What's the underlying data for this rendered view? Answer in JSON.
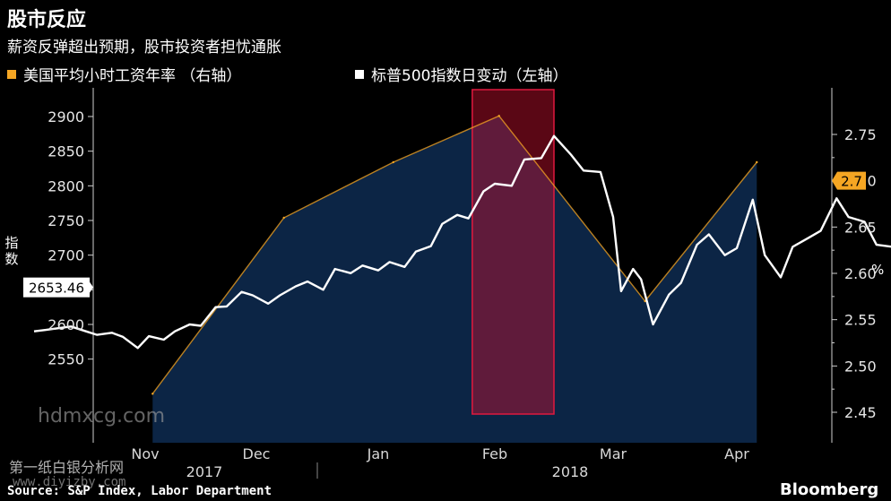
{
  "title": "股市反应",
  "subtitle": "薪资反弹超出预期，股市投资者担忧通胀",
  "legend": {
    "wages": {
      "label": "美国平均小时工资年率 （右轴）",
      "color": "#f5a623"
    },
    "sp500": {
      "label": "标普500指数日变动（左轴）",
      "color": "#ffffff"
    }
  },
  "axes": {
    "left_label": "指数",
    "right_label": "%"
  },
  "source": "Source: S&P Index, Labor Department",
  "brand": "Bloomberg",
  "watermarks": [
    "hdmxcg.com",
    "第一纸白银分析网",
    "www.diyizby.com"
  ],
  "chart_data": {
    "type": "line",
    "x_ticks": [
      {
        "label": "Nov",
        "date": "2017-11-01"
      },
      {
        "label": "Dec",
        "date": "2017-12-01"
      },
      {
        "label": "Jan",
        "date": "2018-01-01"
      },
      {
        "label": "Feb",
        "date": "2018-02-01"
      },
      {
        "label": "Mar",
        "date": "2018-03-01"
      },
      {
        "label": "Apr",
        "date": "2018-04-01"
      }
    ],
    "x_years": [
      "2017",
      "2018"
    ],
    "left_axis": {
      "ticks": [
        2550,
        2600,
        2650,
        2700,
        2750,
        2800,
        2850,
        2900
      ],
      "range": [
        2535,
        2915
      ]
    },
    "right_axis": {
      "ticks": [
        2.45,
        2.5,
        2.55,
        2.6,
        2.65,
        2.7,
        2.75
      ],
      "range": [
        2.44,
        2.77
      ]
    },
    "highlight": {
      "from": "2018-01-26",
      "to": "2018-02-15",
      "color": "#c8102e"
    },
    "current_left": {
      "value": 2653.46,
      "label": "2653.46"
    },
    "current_right": {
      "value": 2.7,
      "label": "2.7"
    },
    "series": [
      {
        "axis": "right",
        "color": "#f5a623",
        "fill": "#0c2545",
        "points": [
          {
            "date": "2017-11-03",
            "value": 2.47
          },
          {
            "date": "2017-12-08",
            "value": 2.66
          },
          {
            "date": "2018-01-05",
            "value": 2.72
          },
          {
            "date": "2018-02-02",
            "value": 2.77
          },
          {
            "date": "2018-03-09",
            "value": 2.57
          },
          {
            "date": "2018-04-06",
            "value": 2.72
          }
        ]
      },
      {
        "axis": "left",
        "color": "#ffffff",
        "points": [
          [
            "2017-10-02",
            2590
          ],
          [
            "2017-10-05",
            2592
          ],
          [
            "2017-10-09",
            2595
          ],
          [
            "2017-10-12",
            2597
          ],
          [
            "2017-10-16",
            2590
          ],
          [
            "2017-10-19",
            2585
          ],
          [
            "2017-10-23",
            2588
          ],
          [
            "2017-10-26",
            2582
          ],
          [
            "2017-10-30",
            2566
          ],
          [
            "2017-11-02",
            2583
          ],
          [
            "2017-11-06",
            2578
          ],
          [
            "2017-11-09",
            2590
          ],
          [
            "2017-11-13",
            2600
          ],
          [
            "2017-11-16",
            2598
          ],
          [
            "2017-11-20",
            2625
          ],
          [
            "2017-11-23",
            2626
          ],
          [
            "2017-11-27",
            2647
          ],
          [
            "2017-11-30",
            2642
          ],
          [
            "2017-12-04",
            2630
          ],
          [
            "2017-12-07",
            2642
          ],
          [
            "2017-12-11",
            2655
          ],
          [
            "2017-12-14",
            2662
          ],
          [
            "2017-12-18",
            2650
          ],
          [
            "2017-12-21",
            2680
          ],
          [
            "2017-12-25",
            2674
          ],
          [
            "2017-12-28",
            2685
          ],
          [
            "2018-01-01",
            2678
          ],
          [
            "2018-01-04",
            2690
          ],
          [
            "2018-01-08",
            2683
          ],
          [
            "2018-01-11",
            2705
          ],
          [
            "2018-01-15",
            2713
          ],
          [
            "2018-01-18",
            2745
          ],
          [
            "2018-01-22",
            2758
          ],
          [
            "2018-01-25",
            2753
          ],
          [
            "2018-01-29",
            2792
          ],
          [
            "2018-02-01",
            2803
          ],
          [
            "2018-02-05",
            2800
          ],
          [
            "2018-02-08",
            2838
          ],
          [
            "2018-02-12",
            2840
          ],
          [
            "2018-02-15",
            2872
          ],
          [
            "2018-02-19",
            2845
          ],
          [
            "2018-02-22",
            2822
          ],
          [
            "2018-02-26",
            2820
          ],
          [
            "2018-03-01",
            2755
          ],
          [
            "2018-03-03",
            2648
          ],
          [
            "2018-03-06",
            2680
          ],
          [
            "2018-03-08",
            2665
          ],
          [
            "2018-03-11",
            2600
          ],
          [
            "2018-03-15",
            2643
          ],
          [
            "2018-03-18",
            2660
          ],
          [
            "2018-03-22",
            2715
          ],
          [
            "2018-03-25",
            2730
          ],
          [
            "2018-03-29",
            2700
          ],
          [
            "2018-04-01",
            2710
          ],
          [
            "2018-04-05",
            2780
          ],
          [
            "2018-04-08",
            2700
          ],
          [
            "2018-04-12",
            2668
          ],
          [
            "2018-04-15",
            2712
          ],
          [
            "2018-04-19",
            2725
          ],
          [
            "2018-04-22",
            2735
          ],
          [
            "2018-04-26",
            2782
          ],
          [
            "2018-04-29",
            2755
          ],
          [
            "2018-05-03",
            2748
          ],
          [
            "2018-05-06",
            2715
          ],
          [
            "2018-05-10",
            2712
          ],
          [
            "2018-05-13",
            2640
          ],
          [
            "2018-05-15",
            2600
          ],
          [
            "2018-05-17",
            2657
          ],
          [
            "2018-05-19",
            2608
          ],
          [
            "2018-05-22",
            2640
          ],
          [
            "2018-05-25",
            2596
          ],
          [
            "2018-05-29",
            2640
          ],
          [
            "2018-06-01",
            2662
          ],
          [
            "2018-06-04",
            2605
          ],
          [
            "2018-06-07",
            2656
          ],
          [
            "2018-06-11",
            2652
          ],
          [
            "2018-06-14",
            2670
          ],
          [
            "2018-06-18",
            2705
          ],
          [
            "2018-06-21",
            2675
          ],
          [
            "2018-06-25",
            2660
          ],
          [
            "2018-06-28",
            2630
          ],
          [
            "2018-07-02",
            2660
          ],
          [
            "2018-07-05",
            2668
          ],
          [
            "2018-07-09",
            2645
          ],
          [
            "2018-07-12",
            2653
          ]
        ]
      }
    ]
  }
}
